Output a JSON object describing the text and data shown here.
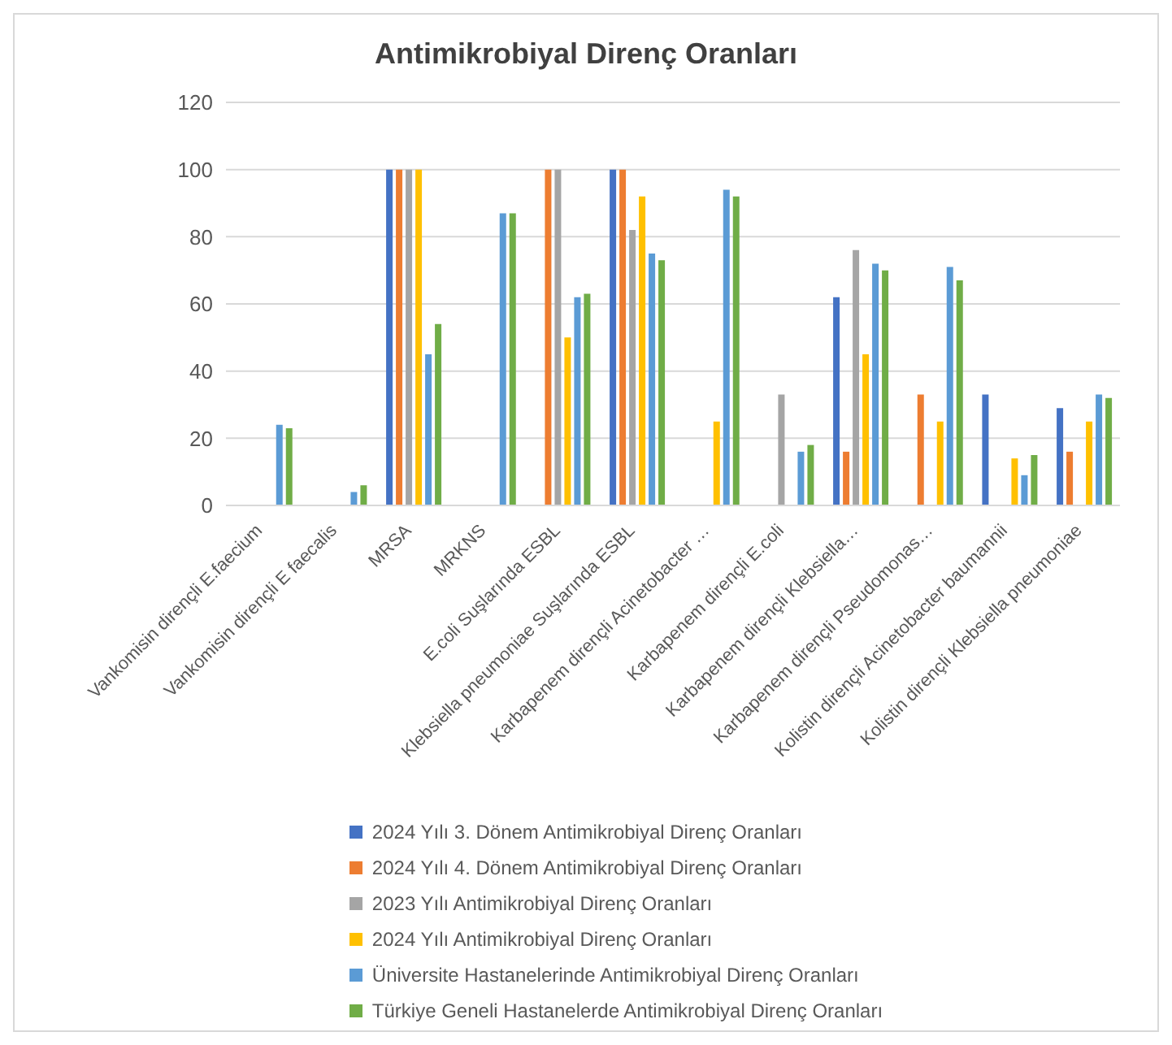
{
  "chart_data": {
    "type": "bar",
    "title": "Antimikrobiyal Direnç Oranları",
    "categories": [
      "Vankomisin dirençli E.faecium",
      "Vankomisin dirençli E faecalis",
      "MRSA",
      "MRKNS",
      "E.coli Suşlarında ESBL",
      "Klebsiella pneumoniae Suşlarında ESBL",
      "Karbapenem dirençli Acinetobacter …",
      "Karbapenem dirençli E.coli",
      "Karbapenem dirençli Klebsiella…",
      "Karbapenem dirençli Pseudomonas…",
      "Kolistin dirençli Acinetobacter baumannii",
      "Kolistin dirençli Klebsiella pneumoniae"
    ],
    "series": [
      {
        "name": "2024 Yılı 3. Dönem Antimikrobiyal Direnç Oranları",
        "color": "#4472c4",
        "values": [
          null,
          null,
          100,
          null,
          null,
          100,
          null,
          null,
          62,
          null,
          33,
          29
        ]
      },
      {
        "name": "2024 Yılı 4. Dönem Antimikrobiyal Direnç Oranları",
        "color": "#ed7d31",
        "values": [
          null,
          null,
          100,
          null,
          100,
          100,
          null,
          null,
          16,
          33,
          null,
          16
        ]
      },
      {
        "name": "2023 Yılı Antimikrobiyal Direnç Oranları",
        "color": "#a5a5a5",
        "values": [
          null,
          null,
          100,
          null,
          100,
          82,
          null,
          33,
          76,
          null,
          null,
          null
        ]
      },
      {
        "name": "2024 Yılı Antimikrobiyal Direnç Oranları",
        "color": "#ffc000",
        "values": [
          null,
          null,
          100,
          null,
          50,
          92,
          25,
          null,
          45,
          25,
          14,
          25
        ]
      },
      {
        "name": "Üniversite Hastanelerinde Antimikrobiyal Direnç Oranları",
        "color": "#5b9bd5",
        "values": [
          24,
          4,
          45,
          87,
          62,
          75,
          94,
          16,
          72,
          71,
          9,
          33
        ]
      },
      {
        "name": "Türkiye Geneli Hastanelerde Antimikrobiyal Direnç Oranları",
        "color": "#70ad47",
        "values": [
          23,
          6,
          54,
          87,
          63,
          73,
          92,
          18,
          70,
          67,
          15,
          32
        ]
      }
    ],
    "ylim": [
      0,
      120
    ],
    "yticks": [
      0,
      20,
      40,
      60,
      80,
      100,
      120
    ],
    "grid": "y",
    "legend": "bottom"
  }
}
